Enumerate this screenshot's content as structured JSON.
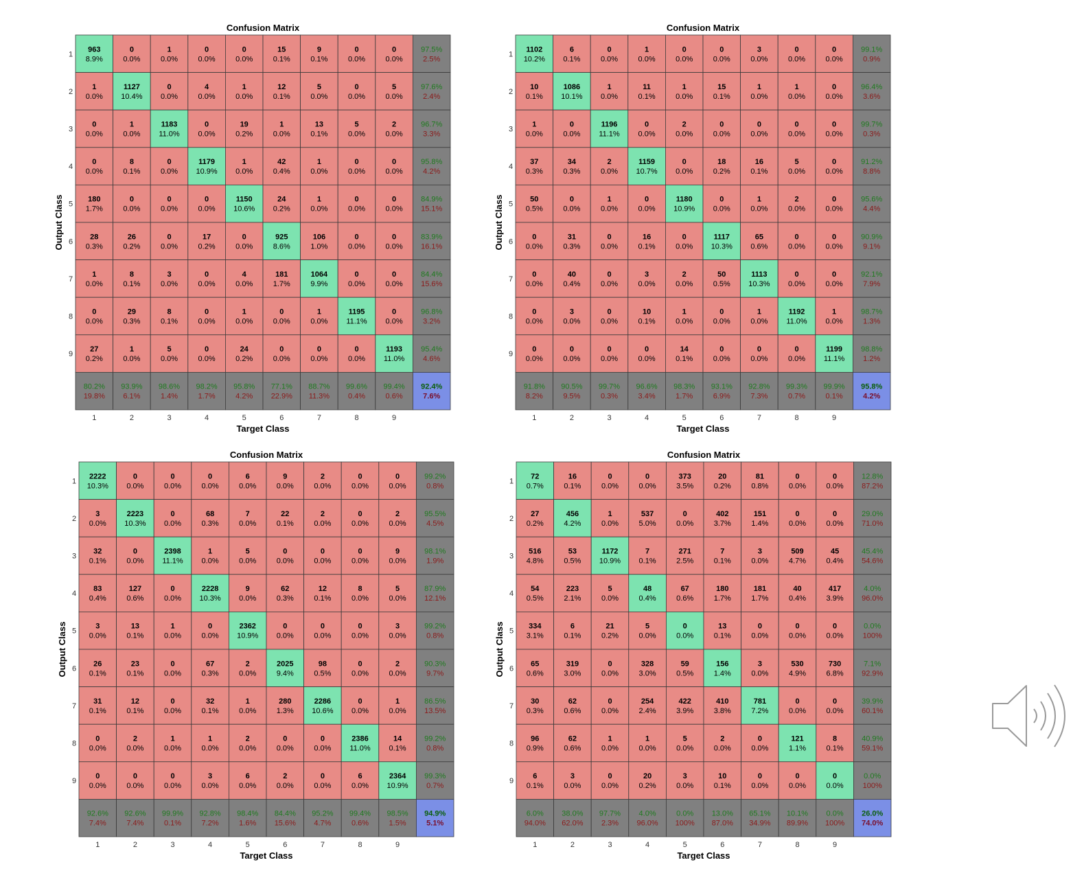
{
  "colors": {
    "correct": "#7de3b0",
    "incorrect": "#e88b86",
    "summary": "#808080",
    "overall": "#7b8fe6",
    "good_text": "#1f7a1f",
    "bad_text": "#8b1a1a",
    "overall_good_text": "#0a5e0a",
    "overall_bad_text": "#7a0f2a"
  },
  "icons": {
    "speaker": "speaker-volume-icon"
  },
  "chart_data": [
    {
      "type": "table",
      "title": "Confusion Matrix",
      "xlabel": "Target Class",
      "ylabel": "Output Class",
      "classes": [
        "1",
        "2",
        "3",
        "4",
        "5",
        "6",
        "7",
        "8",
        "9"
      ],
      "counts": [
        [
          963,
          0,
          1,
          0,
          0,
          15,
          9,
          0,
          0
        ],
        [
          1,
          1127,
          0,
          4,
          1,
          12,
          5,
          0,
          5
        ],
        [
          0,
          1,
          1183,
          0,
          19,
          1,
          13,
          5,
          2
        ],
        [
          0,
          8,
          0,
          1179,
          1,
          42,
          1,
          0,
          0
        ],
        [
          180,
          0,
          0,
          0,
          1150,
          24,
          1,
          0,
          0
        ],
        [
          28,
          26,
          0,
          17,
          0,
          925,
          106,
          0,
          0
        ],
        [
          1,
          8,
          3,
          0,
          4,
          181,
          1064,
          0,
          0
        ],
        [
          0,
          29,
          8,
          0,
          1,
          0,
          1,
          1195,
          0
        ],
        [
          27,
          1,
          5,
          0,
          24,
          0,
          0,
          0,
          1193
        ]
      ],
      "percents": [
        [
          "8.9%",
          "0.0%",
          "0.0%",
          "0.0%",
          "0.0%",
          "0.1%",
          "0.1%",
          "0.0%",
          "0.0%"
        ],
        [
          "0.0%",
          "10.4%",
          "0.0%",
          "0.0%",
          "0.0%",
          "0.1%",
          "0.0%",
          "0.0%",
          "0.0%"
        ],
        [
          "0.0%",
          "0.0%",
          "11.0%",
          "0.0%",
          "0.2%",
          "0.0%",
          "0.1%",
          "0.0%",
          "0.0%"
        ],
        [
          "0.0%",
          "0.1%",
          "0.0%",
          "10.9%",
          "0.0%",
          "0.4%",
          "0.0%",
          "0.0%",
          "0.0%"
        ],
        [
          "1.7%",
          "0.0%",
          "0.0%",
          "0.0%",
          "10.6%",
          "0.2%",
          "0.0%",
          "0.0%",
          "0.0%"
        ],
        [
          "0.3%",
          "0.2%",
          "0.0%",
          "0.2%",
          "0.0%",
          "8.6%",
          "1.0%",
          "0.0%",
          "0.0%"
        ],
        [
          "0.0%",
          "0.1%",
          "0.0%",
          "0.0%",
          "0.0%",
          "1.7%",
          "9.9%",
          "0.0%",
          "0.0%"
        ],
        [
          "0.0%",
          "0.3%",
          "0.1%",
          "0.0%",
          "0.0%",
          "0.0%",
          "0.0%",
          "11.1%",
          "0.0%"
        ],
        [
          "0.2%",
          "0.0%",
          "0.0%",
          "0.0%",
          "0.2%",
          "0.0%",
          "0.0%",
          "0.0%",
          "11.0%"
        ]
      ],
      "row_summary": [
        [
          "97.5%",
          "2.5%"
        ],
        [
          "97.6%",
          "2.4%"
        ],
        [
          "96.7%",
          "3.3%"
        ],
        [
          "95.8%",
          "4.2%"
        ],
        [
          "84.9%",
          "15.1%"
        ],
        [
          "83.9%",
          "16.1%"
        ],
        [
          "84.4%",
          "15.6%"
        ],
        [
          "96.8%",
          "3.2%"
        ],
        [
          "95.4%",
          "4.6%"
        ]
      ],
      "col_summary": [
        [
          "80.2%",
          "19.8%"
        ],
        [
          "93.9%",
          "6.1%"
        ],
        [
          "98.6%",
          "1.4%"
        ],
        [
          "98.2%",
          "1.7%"
        ],
        [
          "95.8%",
          "4.2%"
        ],
        [
          "77.1%",
          "22.9%"
        ],
        [
          "88.7%",
          "11.3%"
        ],
        [
          "99.6%",
          "0.4%"
        ],
        [
          "99.4%",
          "0.6%"
        ]
      ],
      "overall": [
        "92.4%",
        "7.6%"
      ]
    },
    {
      "type": "table",
      "title": "Confusion Matrix",
      "xlabel": "Target Class",
      "ylabel": "Output Class",
      "classes": [
        "1",
        "2",
        "3",
        "4",
        "5",
        "6",
        "7",
        "8",
        "9"
      ],
      "counts": [
        [
          1102,
          6,
          0,
          1,
          0,
          0,
          3,
          0,
          0
        ],
        [
          10,
          1086,
          1,
          11,
          1,
          15,
          1,
          1,
          0
        ],
        [
          1,
          0,
          1196,
          0,
          2,
          0,
          0,
          0,
          0
        ],
        [
          37,
          34,
          2,
          1159,
          0,
          18,
          16,
          5,
          0
        ],
        [
          50,
          0,
          1,
          0,
          1180,
          0,
          1,
          2,
          0
        ],
        [
          0,
          31,
          0,
          16,
          0,
          1117,
          65,
          0,
          0
        ],
        [
          0,
          40,
          0,
          3,
          2,
          50,
          1113,
          0,
          0
        ],
        [
          0,
          3,
          0,
          10,
          1,
          0,
          1,
          1192,
          1
        ],
        [
          0,
          0,
          0,
          0,
          14,
          0,
          0,
          0,
          1199
        ]
      ],
      "percents": [
        [
          "10.2%",
          "0.1%",
          "0.0%",
          "0.0%",
          "0.0%",
          "0.0%",
          "0.0%",
          "0.0%",
          "0.0%"
        ],
        [
          "0.1%",
          "10.1%",
          "0.0%",
          "0.1%",
          "0.0%",
          "0.1%",
          "0.0%",
          "0.0%",
          "0.0%"
        ],
        [
          "0.0%",
          "0.0%",
          "11.1%",
          "0.0%",
          "0.0%",
          "0.0%",
          "0.0%",
          "0.0%",
          "0.0%"
        ],
        [
          "0.3%",
          "0.3%",
          "0.0%",
          "10.7%",
          "0.0%",
          "0.2%",
          "0.1%",
          "0.0%",
          "0.0%"
        ],
        [
          "0.5%",
          "0.0%",
          "0.0%",
          "0.0%",
          "10.9%",
          "0.0%",
          "0.0%",
          "0.0%",
          "0.0%"
        ],
        [
          "0.0%",
          "0.3%",
          "0.0%",
          "0.1%",
          "0.0%",
          "10.3%",
          "0.6%",
          "0.0%",
          "0.0%"
        ],
        [
          "0.0%",
          "0.4%",
          "0.0%",
          "0.0%",
          "0.0%",
          "0.5%",
          "10.3%",
          "0.0%",
          "0.0%"
        ],
        [
          "0.0%",
          "0.0%",
          "0.0%",
          "0.1%",
          "0.0%",
          "0.0%",
          "0.0%",
          "11.0%",
          "0.0%"
        ],
        [
          "0.0%",
          "0.0%",
          "0.0%",
          "0.0%",
          "0.1%",
          "0.0%",
          "0.0%",
          "0.0%",
          "11.1%"
        ]
      ],
      "row_summary": [
        [
          "99.1%",
          "0.9%"
        ],
        [
          "96.4%",
          "3.6%"
        ],
        [
          "99.7%",
          "0.3%"
        ],
        [
          "91.2%",
          "8.8%"
        ],
        [
          "95.6%",
          "4.4%"
        ],
        [
          "90.9%",
          "9.1%"
        ],
        [
          "92.1%",
          "7.9%"
        ],
        [
          "98.7%",
          "1.3%"
        ],
        [
          "98.8%",
          "1.2%"
        ]
      ],
      "col_summary": [
        [
          "91.8%",
          "8.2%"
        ],
        [
          "90.5%",
          "9.5%"
        ],
        [
          "99.7%",
          "0.3%"
        ],
        [
          "96.6%",
          "3.4%"
        ],
        [
          "98.3%",
          "1.7%"
        ],
        [
          "93.1%",
          "6.9%"
        ],
        [
          "92.8%",
          "7.3%"
        ],
        [
          "99.3%",
          "0.7%"
        ],
        [
          "99.9%",
          "0.1%"
        ]
      ],
      "overall": [
        "95.8%",
        "4.2%"
      ]
    },
    {
      "type": "table",
      "title": "Confusion Matrix",
      "xlabel": "Target Class",
      "ylabel": "Output Class",
      "classes": [
        "1",
        "2",
        "3",
        "4",
        "5",
        "6",
        "7",
        "8",
        "9"
      ],
      "counts": [
        [
          2222,
          0,
          0,
          0,
          6,
          9,
          2,
          0,
          0
        ],
        [
          3,
          2223,
          0,
          68,
          7,
          22,
          2,
          0,
          2
        ],
        [
          32,
          0,
          2398,
          1,
          5,
          0,
          0,
          0,
          9
        ],
        [
          83,
          127,
          0,
          2228,
          9,
          62,
          12,
          8,
          5
        ],
        [
          3,
          13,
          1,
          0,
          2362,
          0,
          0,
          0,
          3
        ],
        [
          26,
          23,
          0,
          67,
          2,
          2025,
          98,
          0,
          2
        ],
        [
          31,
          12,
          0,
          32,
          1,
          280,
          2286,
          0,
          1
        ],
        [
          0,
          2,
          1,
          1,
          2,
          0,
          0,
          2386,
          14
        ],
        [
          0,
          0,
          0,
          3,
          6,
          2,
          0,
          6,
          2364
        ]
      ],
      "percents": [
        [
          "10.3%",
          "0.0%",
          "0.0%",
          "0.0%",
          "0.0%",
          "0.0%",
          "0.0%",
          "0.0%",
          "0.0%"
        ],
        [
          "0.0%",
          "10.3%",
          "0.0%",
          "0.3%",
          "0.0%",
          "0.1%",
          "0.0%",
          "0.0%",
          "0.0%"
        ],
        [
          "0.1%",
          "0.0%",
          "11.1%",
          "0.0%",
          "0.0%",
          "0.0%",
          "0.0%",
          "0.0%",
          "0.0%"
        ],
        [
          "0.4%",
          "0.6%",
          "0.0%",
          "10.3%",
          "0.0%",
          "0.3%",
          "0.1%",
          "0.0%",
          "0.0%"
        ],
        [
          "0.0%",
          "0.1%",
          "0.0%",
          "0.0%",
          "10.9%",
          "0.0%",
          "0.0%",
          "0.0%",
          "0.0%"
        ],
        [
          "0.1%",
          "0.1%",
          "0.0%",
          "0.3%",
          "0.0%",
          "9.4%",
          "0.5%",
          "0.0%",
          "0.0%"
        ],
        [
          "0.1%",
          "0.1%",
          "0.0%",
          "0.1%",
          "0.0%",
          "1.3%",
          "10.6%",
          "0.0%",
          "0.0%"
        ],
        [
          "0.0%",
          "0.0%",
          "0.0%",
          "0.0%",
          "0.0%",
          "0.0%",
          "0.0%",
          "11.0%",
          "0.1%"
        ],
        [
          "0.0%",
          "0.0%",
          "0.0%",
          "0.0%",
          "0.0%",
          "0.0%",
          "0.0%",
          "0.0%",
          "10.9%"
        ]
      ],
      "row_summary": [
        [
          "99.2%",
          "0.8%"
        ],
        [
          "95.5%",
          "4.5%"
        ],
        [
          "98.1%",
          "1.9%"
        ],
        [
          "87.9%",
          "12.1%"
        ],
        [
          "99.2%",
          "0.8%"
        ],
        [
          "90.3%",
          "9.7%"
        ],
        [
          "86.5%",
          "13.5%"
        ],
        [
          "99.2%",
          "0.8%"
        ],
        [
          "99.3%",
          "0.7%"
        ]
      ],
      "col_summary": [
        [
          "92.6%",
          "7.4%"
        ],
        [
          "92.6%",
          "7.4%"
        ],
        [
          "99.9%",
          "0.1%"
        ],
        [
          "92.8%",
          "7.2%"
        ],
        [
          "98.4%",
          "1.6%"
        ],
        [
          "84.4%",
          "15.6%"
        ],
        [
          "95.2%",
          "4.7%"
        ],
        [
          "99.4%",
          "0.6%"
        ],
        [
          "98.5%",
          "1.5%"
        ]
      ],
      "overall": [
        "94.9%",
        "5.1%"
      ]
    },
    {
      "type": "table",
      "title": "Confusion Matrix",
      "xlabel": "Target Class",
      "ylabel": "Output Class",
      "classes": [
        "1",
        "2",
        "3",
        "4",
        "5",
        "6",
        "7",
        "8",
        "9"
      ],
      "counts": [
        [
          72,
          16,
          0,
          0,
          373,
          20,
          81,
          0,
          0
        ],
        [
          27,
          456,
          1,
          537,
          0,
          402,
          151,
          0,
          0
        ],
        [
          516,
          53,
          1172,
          7,
          271,
          7,
          3,
          509,
          45
        ],
        [
          54,
          223,
          5,
          48,
          67,
          180,
          181,
          40,
          417
        ],
        [
          334,
          6,
          21,
          5,
          0,
          13,
          0,
          0,
          0
        ],
        [
          65,
          319,
          0,
          328,
          59,
          156,
          3,
          530,
          730
        ],
        [
          30,
          62,
          0,
          254,
          422,
          410,
          781,
          0,
          0
        ],
        [
          96,
          62,
          1,
          1,
          5,
          2,
          0,
          121,
          8
        ],
        [
          6,
          3,
          0,
          20,
          3,
          10,
          0,
          0,
          0
        ]
      ],
      "percents": [
        [
          "0.7%",
          "0.1%",
          "0.0%",
          "0.0%",
          "3.5%",
          "0.2%",
          "0.8%",
          "0.0%",
          "0.0%"
        ],
        [
          "0.2%",
          "4.2%",
          "0.0%",
          "5.0%",
          "0.0%",
          "3.7%",
          "1.4%",
          "0.0%",
          "0.0%"
        ],
        [
          "4.8%",
          "0.5%",
          "10.9%",
          "0.1%",
          "2.5%",
          "0.1%",
          "0.0%",
          "4.7%",
          "0.4%"
        ],
        [
          "0.5%",
          "2.1%",
          "0.0%",
          "0.4%",
          "0.6%",
          "1.7%",
          "1.7%",
          "0.4%",
          "3.9%"
        ],
        [
          "3.1%",
          "0.1%",
          "0.2%",
          "0.0%",
          "0.0%",
          "0.1%",
          "0.0%",
          "0.0%",
          "0.0%"
        ],
        [
          "0.6%",
          "3.0%",
          "0.0%",
          "3.0%",
          "0.5%",
          "1.4%",
          "0.0%",
          "4.9%",
          "6.8%"
        ],
        [
          "0.3%",
          "0.6%",
          "0.0%",
          "2.4%",
          "3.9%",
          "3.8%",
          "7.2%",
          "0.0%",
          "0.0%"
        ],
        [
          "0.9%",
          "0.6%",
          "0.0%",
          "0.0%",
          "0.0%",
          "0.0%",
          "0.0%",
          "1.1%",
          "0.1%"
        ],
        [
          "0.1%",
          "0.0%",
          "0.0%",
          "0.2%",
          "0.0%",
          "0.1%",
          "0.0%",
          "0.0%",
          "0.0%"
        ]
      ],
      "row_summary": [
        [
          "12.8%",
          "87.2%"
        ],
        [
          "29.0%",
          "71.0%"
        ],
        [
          "45.4%",
          "54.6%"
        ],
        [
          "4.0%",
          "96.0%"
        ],
        [
          "0.0%",
          "100%"
        ],
        [
          "7.1%",
          "92.9%"
        ],
        [
          "39.9%",
          "60.1%"
        ],
        [
          "40.9%",
          "59.1%"
        ],
        [
          "0.0%",
          "100%"
        ]
      ],
      "col_summary": [
        [
          "6.0%",
          "94.0%"
        ],
        [
          "38.0%",
          "62.0%"
        ],
        [
          "97.7%",
          "2.3%"
        ],
        [
          "4.0%",
          "96.0%"
        ],
        [
          "0.0%",
          "100%"
        ],
        [
          "13.0%",
          "87.0%"
        ],
        [
          "65.1%",
          "34.9%"
        ],
        [
          "10.1%",
          "89.9%"
        ],
        [
          "0.0%",
          "100%"
        ]
      ],
      "overall": [
        "26.0%",
        "74.0%"
      ]
    }
  ]
}
